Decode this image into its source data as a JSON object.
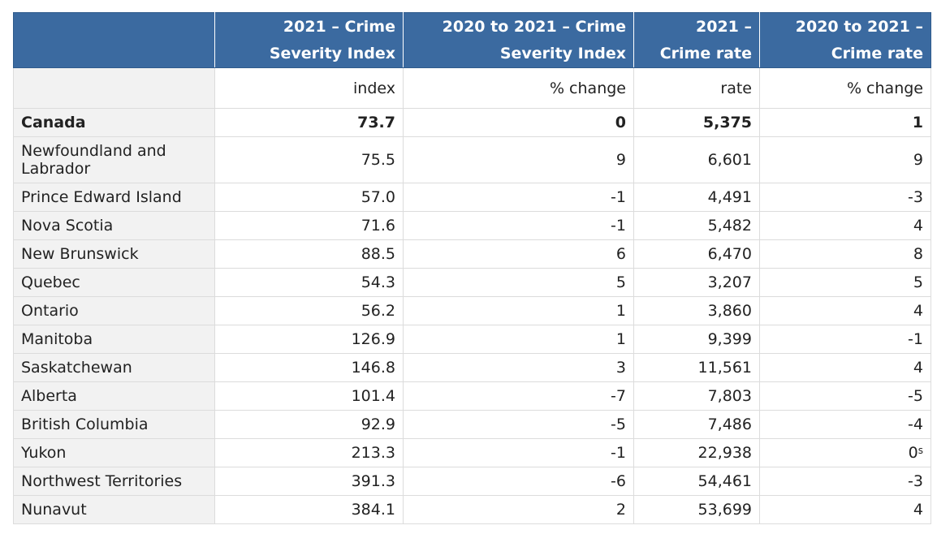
{
  "columns": [
    "",
    "2021 – Crime Severity Index",
    "2020 to 2021 – Crime Severity Index",
    "2021 – Crime rate",
    "2020 to 2021 – Crime rate"
  ],
  "units": [
    "index",
    "% change",
    "rate",
    "% change"
  ],
  "rows": [
    {
      "name": "Canada",
      "values": [
        "73.7",
        "0",
        "5,375",
        "1"
      ],
      "note": ""
    },
    {
      "name": "Newfoundland and Labrador",
      "values": [
        "75.5",
        "9",
        "6,601",
        "9"
      ],
      "note": ""
    },
    {
      "name": "Prince Edward Island",
      "values": [
        "57.0",
        "-1",
        "4,491",
        "-3"
      ],
      "note": ""
    },
    {
      "name": "Nova Scotia",
      "values": [
        "71.6",
        "-1",
        "5,482",
        "4"
      ],
      "note": ""
    },
    {
      "name": "New Brunswick",
      "values": [
        "88.5",
        "6",
        "6,470",
        "8"
      ],
      "note": ""
    },
    {
      "name": "Quebec",
      "values": [
        "54.3",
        "5",
        "3,207",
        "5"
      ],
      "note": ""
    },
    {
      "name": "Ontario",
      "values": [
        "56.2",
        "1",
        "3,860",
        "4"
      ],
      "note": ""
    },
    {
      "name": "Manitoba",
      "values": [
        "126.9",
        "1",
        "9,399",
        "-1"
      ],
      "note": ""
    },
    {
      "name": "Saskatchewan",
      "values": [
        "146.8",
        "3",
        "11,561",
        "4"
      ],
      "note": ""
    },
    {
      "name": "Alberta",
      "values": [
        "101.4",
        "-7",
        "7,803",
        "-5"
      ],
      "note": ""
    },
    {
      "name": "British Columbia",
      "values": [
        "92.9",
        "-5",
        "7,486",
        "-4"
      ],
      "note": ""
    },
    {
      "name": "Yukon",
      "values": [
        "213.3",
        "-1",
        "22,938",
        "0"
      ],
      "note": "s"
    },
    {
      "name": "Northwest Territories",
      "values": [
        "391.3",
        "-6",
        "54,461",
        "-3"
      ],
      "note": ""
    },
    {
      "name": "Nunavut",
      "values": [
        "384.1",
        "2",
        "53,699",
        "4"
      ],
      "note": ""
    }
  ],
  "colors": {
    "header_bg": "#3b6aa0",
    "header_text": "#ffffff",
    "rowhead_bg": "#f2f2f2",
    "grid": "#dcdcdc"
  }
}
